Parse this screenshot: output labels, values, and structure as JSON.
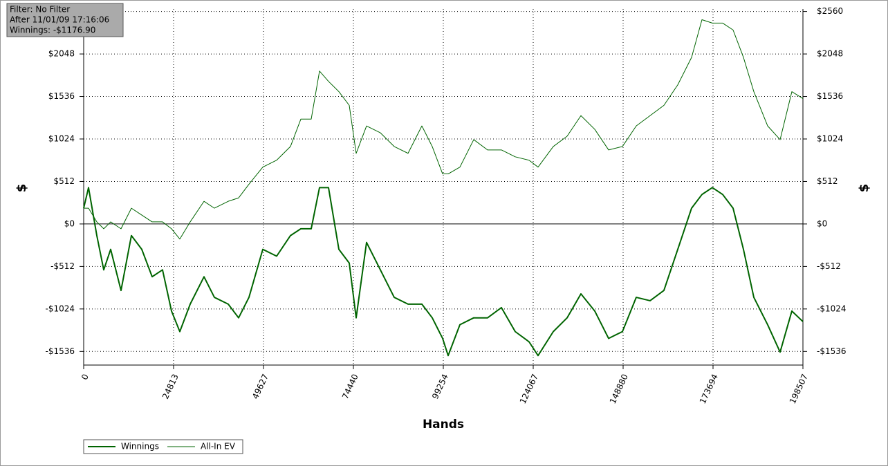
{
  "chart_data": {
    "type": "line",
    "annotations": [
      "Filter: No Filter",
      "After 11/01/09 17:16:06",
      "Winnings: -$1176.90"
    ],
    "xlabel": "Hands",
    "ylabel": "$",
    "y2label": "$",
    "x": [
      0,
      1336,
      3626,
      5535,
      7444,
      10307,
      13170,
      16033,
      18896,
      21759,
      24240,
      26531,
      29394,
      33211,
      36074,
      39892,
      42755,
      45618,
      49435,
      53252,
      57070,
      59933,
      62796,
      65087,
      67568,
      70431,
      73294,
      75203,
      78066,
      81884,
      85701,
      89519,
      93336,
      96199,
      99062,
      100589,
      103834,
      107651,
      111468,
      115286,
      119103,
      122920,
      125402,
      129601,
      133419,
      137236,
      141053,
      144870,
      148688,
      152505,
      156322,
      160139,
      163957,
      167774,
      170637,
      173500,
      176363,
      179226,
      182090,
      184953,
      188770,
      192206,
      195451,
      198507
    ],
    "series": [
      {
        "name": "Winnings",
        "color": "#006400",
        "width": 2,
        "values": [
          190,
          438,
          -140,
          -553,
          -306,
          -801,
          -140,
          -306,
          -636,
          -553,
          -1049,
          -1297,
          -966,
          -636,
          -884,
          -966,
          -1131,
          -884,
          -306,
          -388,
          -140,
          -58,
          -58,
          438,
          438,
          -306,
          -471,
          -1131,
          -223,
          -553,
          -884,
          -966,
          -966,
          -1131,
          -1379,
          -1586,
          -1214,
          -1131,
          -1131,
          -1008,
          -1297,
          -1420,
          -1586,
          -1297,
          -1131,
          -842,
          -1049,
          -1379,
          -1297,
          -884,
          -925,
          -801,
          -306,
          190,
          355,
          438,
          355,
          190,
          -306,
          -884,
          -1214,
          -1544,
          -1049,
          -1177
        ]
      },
      {
        "name": "All-In EV",
        "color": "#006400",
        "width": 1,
        "values": [
          190,
          190,
          25,
          -58,
          25,
          -58,
          190,
          107,
          25,
          25,
          -58,
          -182,
          25,
          273,
          190,
          273,
          314,
          479,
          685,
          768,
          933,
          1263,
          1263,
          1842,
          1718,
          1594,
          1429,
          851,
          1181,
          1098,
          933,
          851,
          1181,
          933,
          603,
          603,
          685,
          1016,
          892,
          892,
          809,
          768,
          685,
          933,
          1057,
          1305,
          1140,
          892,
          933,
          1181,
          1305,
          1429,
          1676,
          2007,
          2461,
          2420,
          2420,
          2337,
          2007,
          1594,
          1181,
          1016,
          1594,
          1511
        ]
      }
    ],
    "xlim": [
      0,
      198507
    ],
    "xticks": [
      0,
      24813,
      49627,
      74440,
      99254,
      124067,
      148880,
      173694,
      198507
    ],
    "ylim": [
      -1700,
      2590
    ],
    "yticks": [
      {
        "value": -1536,
        "label": "-$1536"
      },
      {
        "value": -1024,
        "label": "-$1024"
      },
      {
        "value": -512,
        "label": "-$512"
      },
      {
        "value": 0,
        "label": "$0"
      },
      {
        "value": 512,
        "label": "$512"
      },
      {
        "value": 1024,
        "label": "$1024"
      },
      {
        "value": 1536,
        "label": "$1536"
      },
      {
        "value": 2048,
        "label": "$2048"
      },
      {
        "value": 2560,
        "label": "$2560"
      }
    ],
    "y2lim": [
      -1700,
      2590
    ],
    "y2ticks": [
      {
        "value": -1536,
        "label": "-$1536"
      },
      {
        "value": -1024,
        "label": "-$1024"
      },
      {
        "value": -512,
        "label": "-$512"
      },
      {
        "value": 0,
        "label": "$0"
      },
      {
        "value": 512,
        "label": "$512"
      },
      {
        "value": 1024,
        "label": "$1024"
      },
      {
        "value": 1536,
        "label": "$1536"
      },
      {
        "value": 2048,
        "label": "$2048"
      },
      {
        "value": 2560,
        "label": "$2560"
      }
    ],
    "grid": true,
    "legend": "bottom-left"
  }
}
